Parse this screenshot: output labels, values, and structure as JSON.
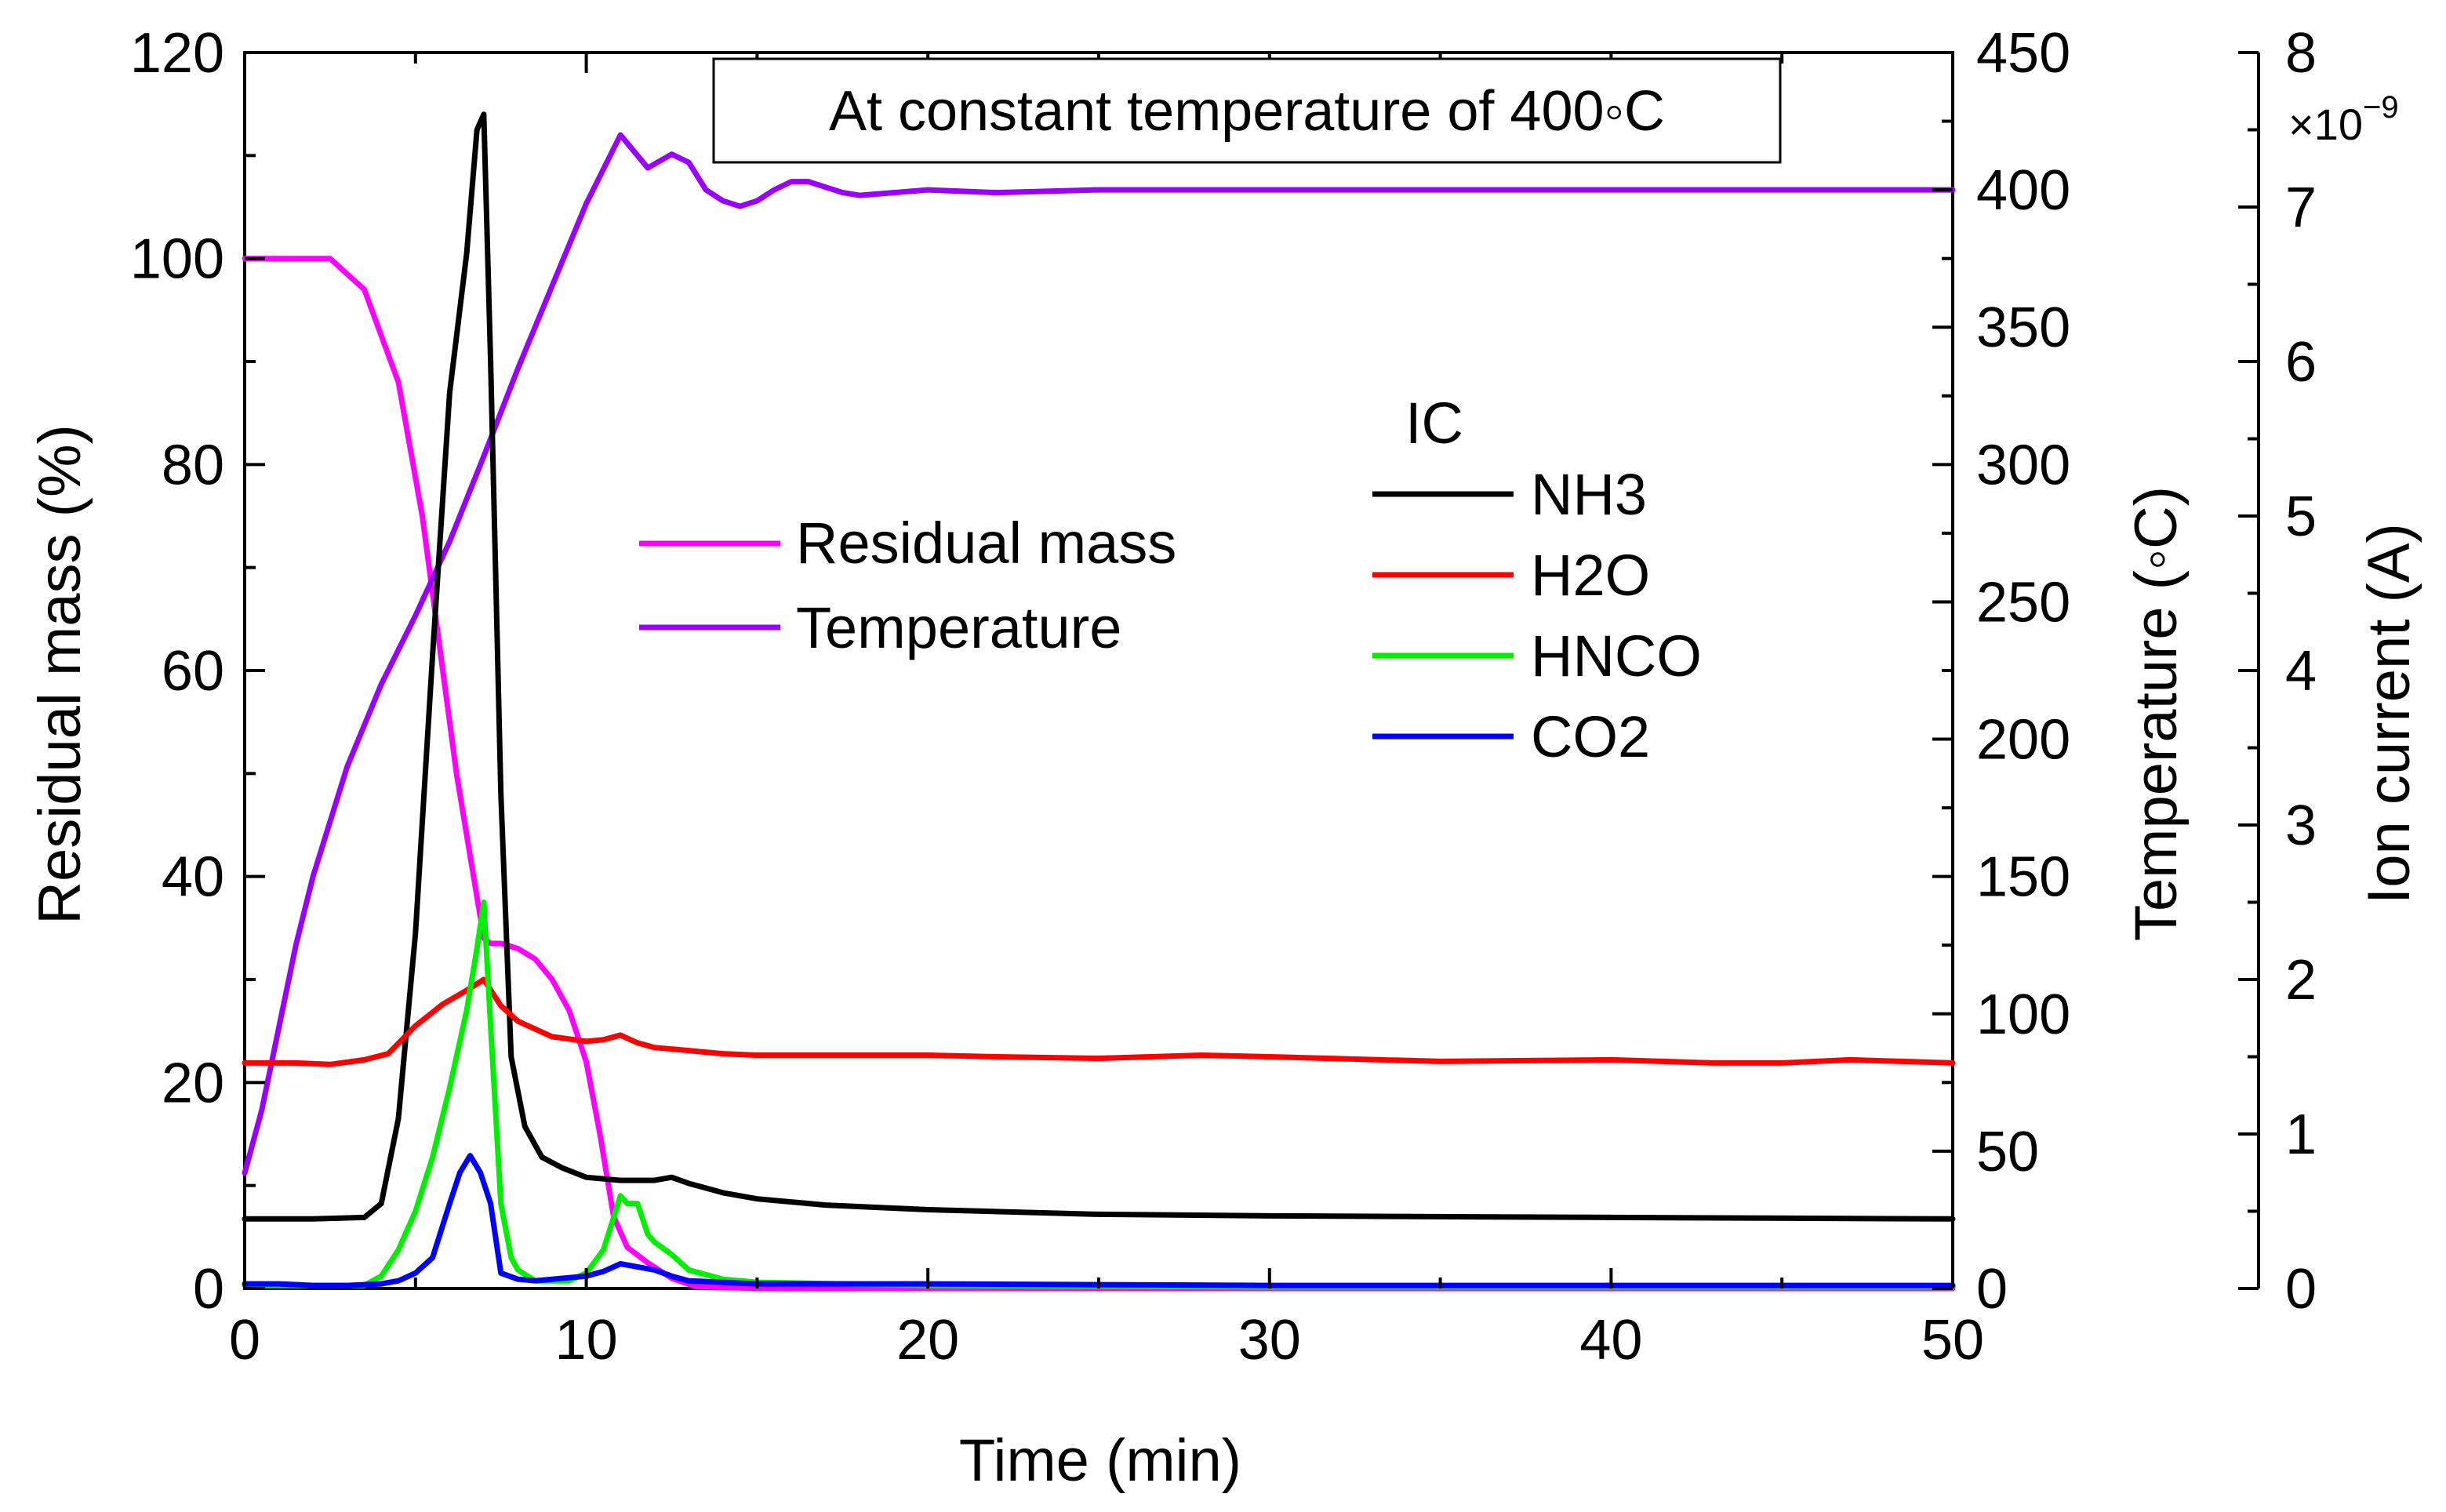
{
  "chart_data": {
    "type": "line",
    "title": "",
    "annotation": "At constant temperature of 400◦C",
    "xlabel": "Time (min)",
    "xlim": [
      0,
      50
    ],
    "xticks": [
      0,
      10,
      20,
      30,
      40,
      50
    ],
    "axes": {
      "left": {
        "label": "Residual mass (%)",
        "lim": [
          0,
          120
        ],
        "ticks": [
          0,
          20,
          40,
          60,
          80,
          100,
          120
        ]
      },
      "right1": {
        "label": "Temperature (◦C)",
        "lim": [
          0,
          450
        ],
        "ticks": [
          0,
          50,
          100,
          150,
          200,
          250,
          300,
          350,
          400,
          450
        ]
      },
      "right2": {
        "label": "Ion current (A)",
        "lim": [
          0,
          8
        ],
        "ticks": [
          0,
          1,
          2,
          3,
          4,
          5,
          6,
          7,
          8
        ],
        "multiplier": "×10",
        "exponent": "−9"
      }
    },
    "legend_left": {
      "entries": [
        "Residual mass",
        "Temperature"
      ]
    },
    "legend_right": {
      "title": "IC",
      "entries": [
        "NH3",
        "H2O",
        "HNCO",
        "CO2"
      ]
    },
    "series": [
      {
        "name": "Residual mass",
        "axis": "left",
        "color": "#ff00ff",
        "x": [
          0,
          2.5,
          3.5,
          4.5,
          5.2,
          5.8,
          6.2,
          6.6,
          6.9,
          7.0,
          7.2,
          7.5,
          8.0,
          8.5,
          9.0,
          9.5,
          10.0,
          10.4,
          10.8,
          11.2,
          11.8,
          12.5,
          13.2,
          15,
          20,
          30,
          40,
          50
        ],
        "y": [
          100,
          100,
          97,
          88,
          75,
          60,
          50,
          42,
          36,
          34,
          33.5,
          33.5,
          33,
          32,
          30,
          27,
          22,
          15,
          7,
          4,
          2.5,
          1,
          0.2,
          0,
          0,
          0,
          0,
          0
        ]
      },
      {
        "name": "Temperature",
        "axis": "right1",
        "color": "#9900ff",
        "x": [
          0,
          0.5,
          1,
          1.5,
          2,
          3,
          4,
          5,
          6,
          7,
          8,
          9,
          10,
          11,
          11.8,
          12.5,
          13,
          13.5,
          14,
          14.5,
          15,
          15.5,
          16,
          16.5,
          17,
          17.5,
          18,
          19,
          20,
          22,
          25,
          30,
          40,
          50
        ],
        "y": [
          42,
          65,
          95,
          125,
          150,
          190,
          220,
          245,
          272,
          303,
          335,
          365,
          395,
          420,
          408,
          413,
          410,
          400,
          396,
          394,
          396,
          400,
          403,
          403,
          401,
          399,
          398,
          399,
          400,
          399,
          400,
          400,
          400,
          400
        ]
      },
      {
        "name": "NH3",
        "axis": "right2",
        "color": "#000000",
        "x": [
          0,
          2,
          3.5,
          4.0,
          4.5,
          5.0,
          5.5,
          6.0,
          6.5,
          6.8,
          7.0,
          7.2,
          7.5,
          7.8,
          8.2,
          8.7,
          9.3,
          10,
          11,
          12,
          12.5,
          13,
          14,
          15,
          17,
          20,
          25,
          30,
          40,
          50
        ],
        "y": [
          0.45,
          0.45,
          0.46,
          0.55,
          1.1,
          2.3,
          4.1,
          5.8,
          6.7,
          7.5,
          7.6,
          6.0,
          3.2,
          1.5,
          1.05,
          0.85,
          0.78,
          0.72,
          0.7,
          0.7,
          0.72,
          0.68,
          0.62,
          0.58,
          0.54,
          0.51,
          0.48,
          0.47,
          0.46,
          0.45
        ]
      },
      {
        "name": "H2O",
        "axis": "right2",
        "color": "#ff0000",
        "x": [
          0,
          1.5,
          2.5,
          3.5,
          4.2,
          5.0,
          5.8,
          6.5,
          7.0,
          7.5,
          8.0,
          9,
          10,
          10.5,
          11.0,
          11.5,
          12,
          13,
          14,
          15,
          17,
          20,
          22,
          25,
          28,
          30,
          35,
          40,
          43,
          45,
          47,
          50
        ],
        "y": [
          1.46,
          1.46,
          1.45,
          1.48,
          1.52,
          1.7,
          1.84,
          1.93,
          2.0,
          1.83,
          1.73,
          1.63,
          1.6,
          1.61,
          1.64,
          1.59,
          1.56,
          1.54,
          1.52,
          1.51,
          1.51,
          1.51,
          1.5,
          1.49,
          1.51,
          1.5,
          1.47,
          1.48,
          1.46,
          1.46,
          1.48,
          1.46
        ]
      },
      {
        "name": "HNCO",
        "axis": "right2",
        "color": "#00ee00",
        "x": [
          0,
          3.5,
          4.0,
          4.5,
          5.0,
          5.5,
          6.0,
          6.5,
          6.8,
          7.0,
          7.2,
          7.5,
          7.8,
          8.0,
          8.5,
          9.0,
          9.5,
          10.0,
          10.5,
          11.0,
          11.2,
          11.5,
          11.8,
          12.0,
          12.5,
          13,
          14,
          15,
          20,
          30,
          40,
          50
        ],
        "y": [
          0.02,
          0.02,
          0.08,
          0.25,
          0.5,
          0.85,
          1.3,
          1.8,
          2.2,
          2.5,
          1.7,
          0.55,
          0.2,
          0.12,
          0.05,
          0.05,
          0.05,
          0.1,
          0.25,
          0.6,
          0.55,
          0.55,
          0.35,
          0.3,
          0.22,
          0.12,
          0.06,
          0.04,
          0.02,
          0.01,
          0.01,
          0.01
        ]
      },
      {
        "name": "CO2",
        "axis": "right2",
        "color": "#0000ff",
        "x": [
          0,
          1,
          2,
          3,
          4,
          4.5,
          5.0,
          5.5,
          6.0,
          6.3,
          6.6,
          6.9,
          7.2,
          7.5,
          8.0,
          8.5,
          9,
          10,
          10.5,
          11.0,
          11.5,
          12,
          12.5,
          13,
          14,
          15,
          20,
          30,
          40,
          50
        ],
        "y": [
          0.03,
          0.03,
          0.02,
          0.02,
          0.03,
          0.05,
          0.1,
          0.2,
          0.55,
          0.75,
          0.86,
          0.75,
          0.55,
          0.1,
          0.06,
          0.05,
          0.06,
          0.08,
          0.11,
          0.16,
          0.14,
          0.12,
          0.08,
          0.05,
          0.04,
          0.03,
          0.03,
          0.02,
          0.02,
          0.02
        ]
      }
    ]
  }
}
